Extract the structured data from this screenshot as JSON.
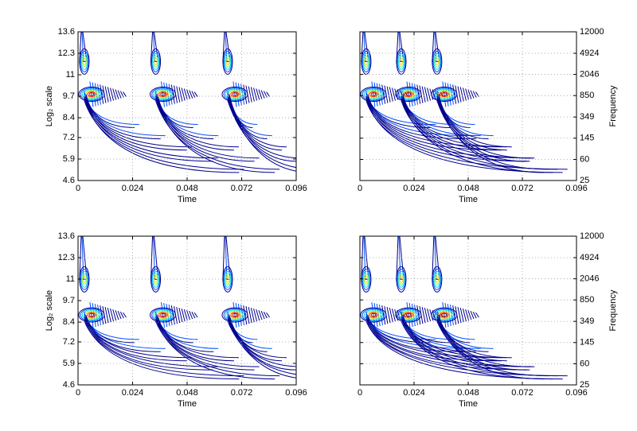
{
  "chart_data": [
    {
      "type": "contour",
      "xlabel": "Time",
      "ylabel": "Log₂ scale",
      "xlim": [
        0,
        0.096
      ],
      "xticks": [
        0,
        0.024,
        0.048,
        0.072,
        0.096
      ],
      "ylim": [
        4.6,
        13.6
      ],
      "yticks": [
        4.6,
        5.9,
        7.2,
        8.4,
        9.7,
        11,
        12.3,
        13.6
      ],
      "yaxis": "left",
      "grid": true
    },
    {
      "type": "contour",
      "xlabel": "Time",
      "ylabel": "Frequency",
      "xlim": [
        0,
        0.096
      ],
      "xticks": [
        0,
        0.024,
        0.048,
        0.072,
        0.096
      ],
      "ylim": [
        25,
        12000
      ],
      "yticks": [
        25,
        60,
        145,
        349,
        850,
        2046,
        4924,
        12000
      ],
      "yscale": "log",
      "yaxis": "right",
      "grid": true
    },
    {
      "type": "contour",
      "xlabel": "Time",
      "ylabel": "Log₂ scale",
      "xlim": [
        0,
        0.096
      ],
      "xticks": [
        0,
        0.024,
        0.048,
        0.072,
        0.096
      ],
      "ylim": [
        4.6,
        13.6
      ],
      "yticks": [
        4.6,
        5.9,
        7.2,
        8.4,
        9.7,
        11,
        12.3,
        13.6
      ],
      "yaxis": "left",
      "grid": true
    },
    {
      "type": "contour",
      "xlabel": "Time",
      "ylabel": "Frequency",
      "xlim": [
        0,
        0.096
      ],
      "xticks": [
        0,
        0.024,
        0.048,
        0.072,
        0.096
      ],
      "ylim": [
        25,
        12000
      ],
      "yticks": [
        25,
        60,
        145,
        349,
        850,
        2046,
        4924,
        12000
      ],
      "yscale": "log",
      "yaxis": "right",
      "grid": true
    }
  ]
}
